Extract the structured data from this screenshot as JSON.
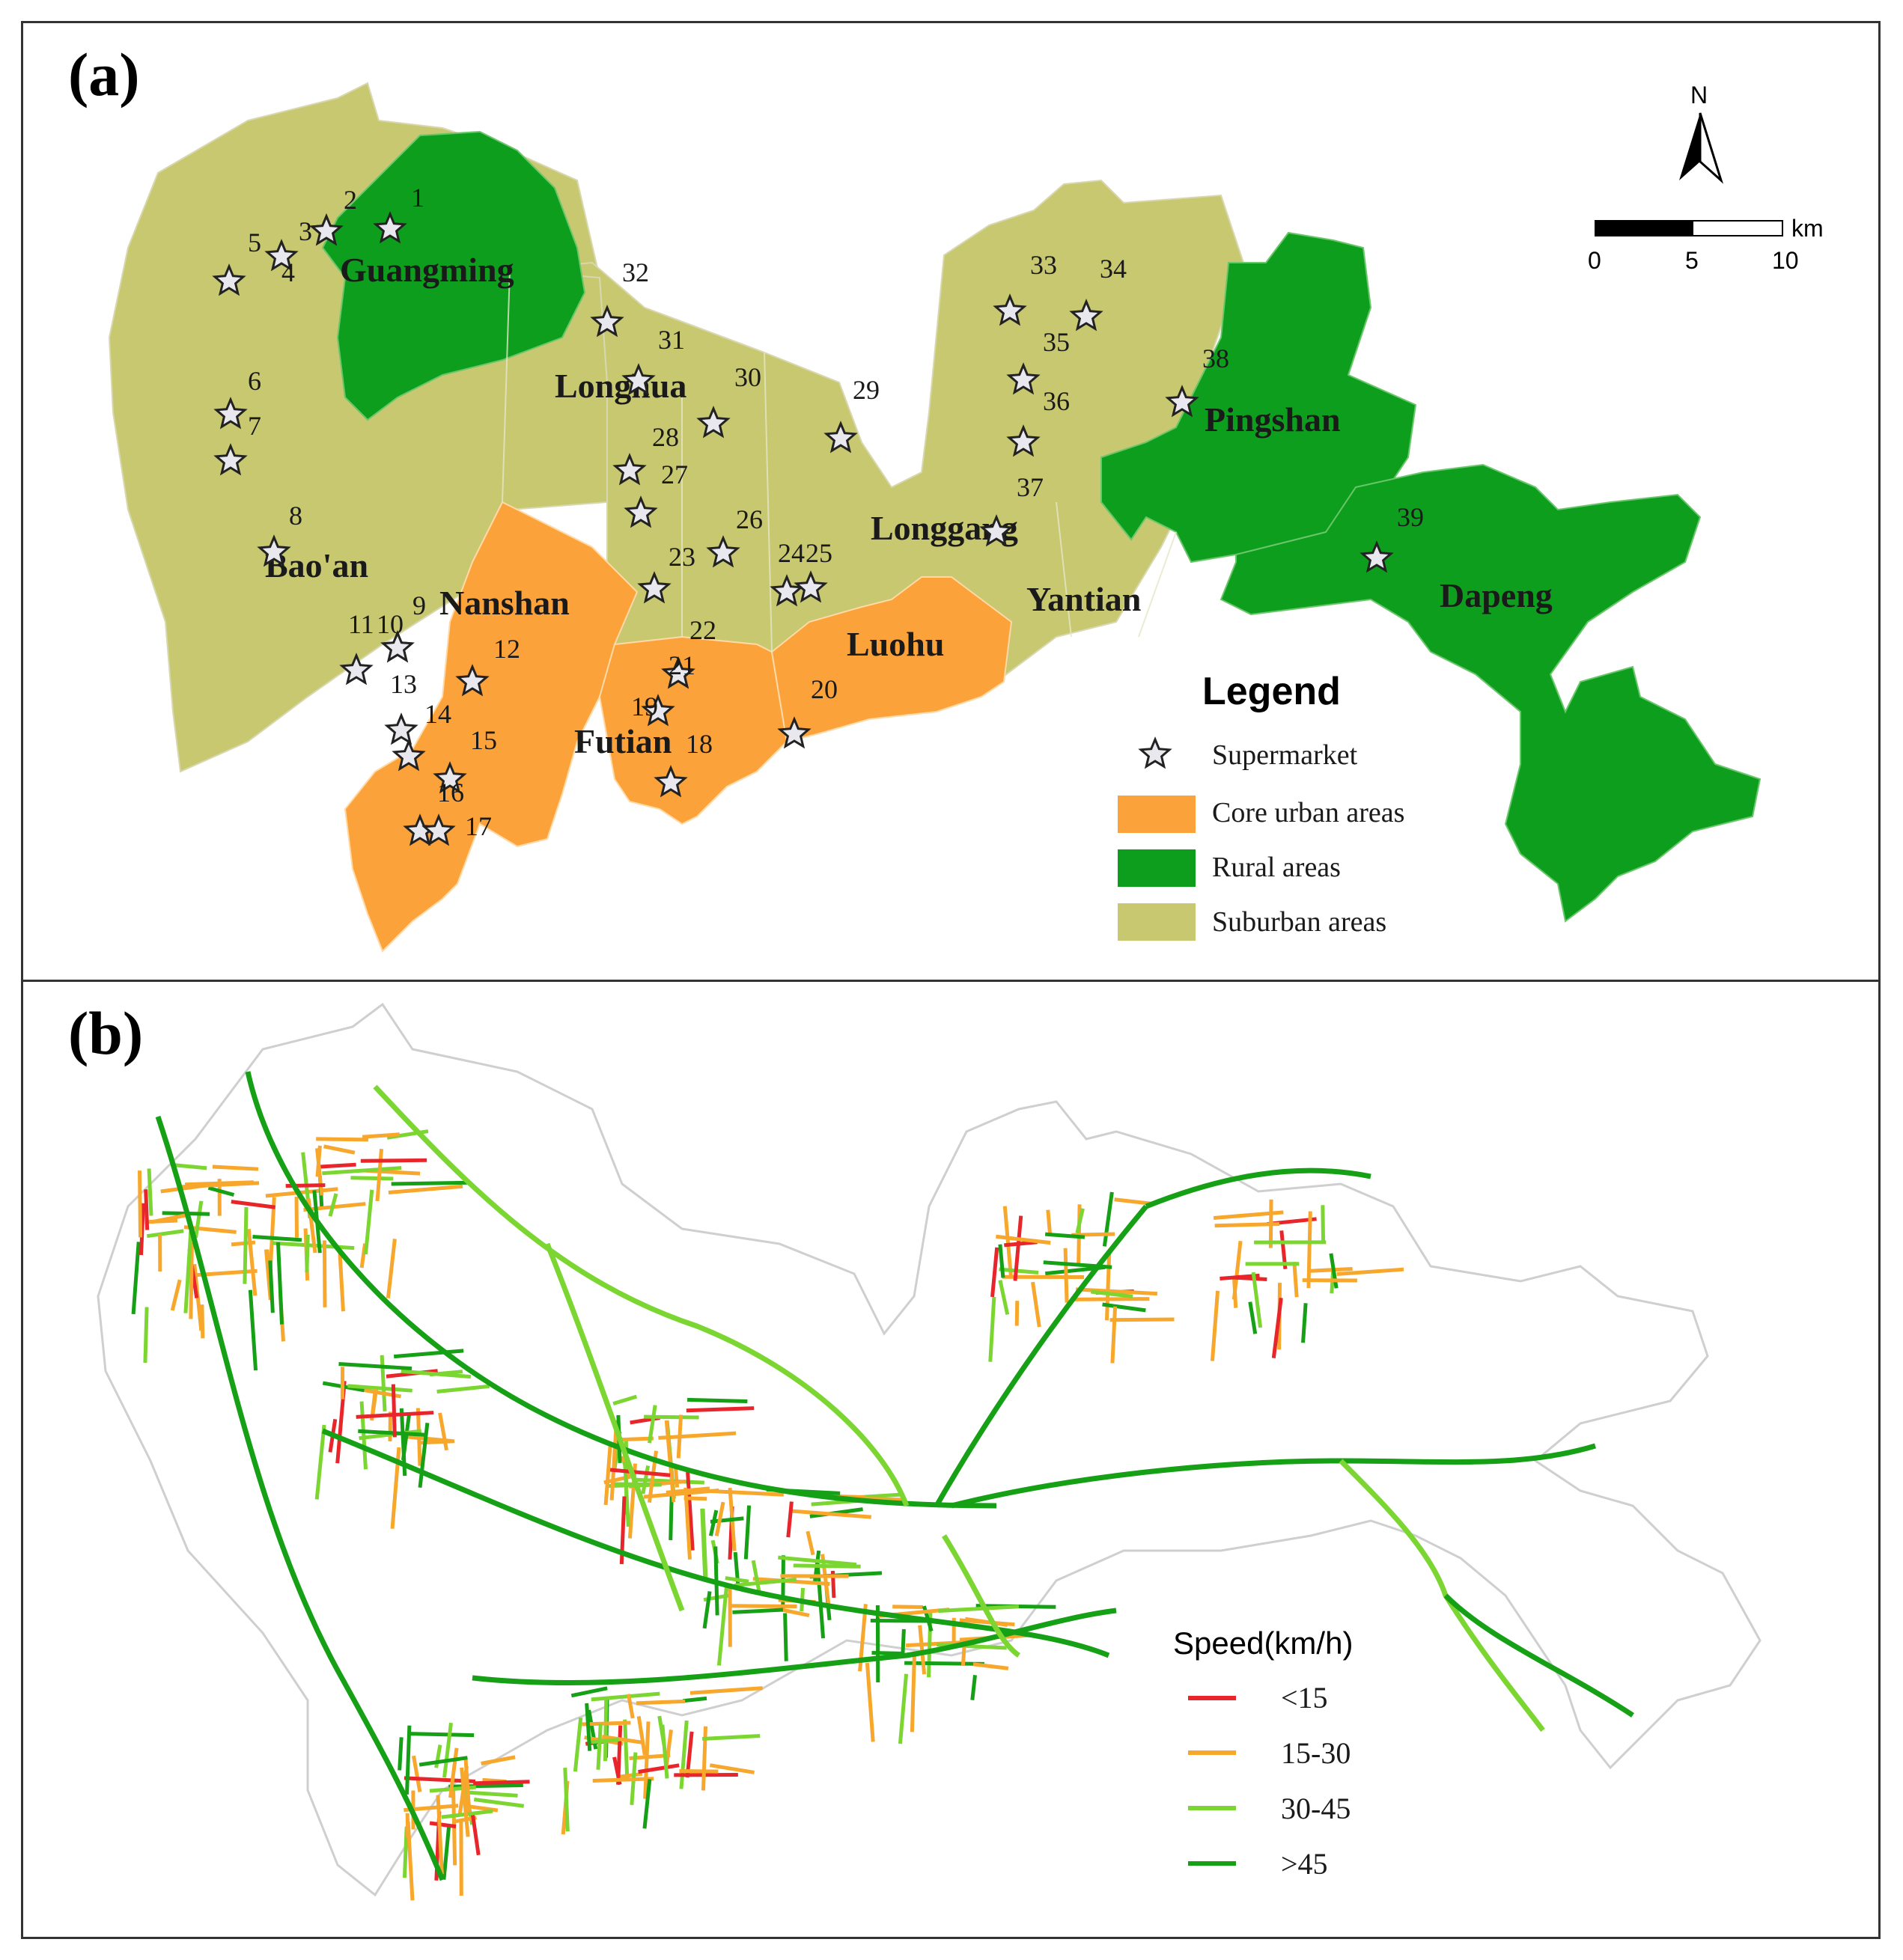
{
  "panel_a": {
    "label": "(a)",
    "north": "N",
    "scale": {
      "ticks": [
        "0",
        "5",
        "10"
      ],
      "unit": "km"
    },
    "districts": [
      "Guangming",
      "Bao'an",
      "Longhua",
      "Nanshan",
      "Futian",
      "Luohu",
      "Longgang",
      "Yantian",
      "Pingshan",
      "Dapeng"
    ],
    "supermarket_numbers": [
      "1",
      "2",
      "3",
      "4",
      "5",
      "6",
      "7",
      "8",
      "9",
      "10",
      "11",
      "12",
      "13",
      "14",
      "15",
      "16",
      "17",
      "18",
      "19",
      "20",
      "21",
      "22",
      "23",
      "24",
      "25",
      "26",
      "27",
      "28",
      "29",
      "30",
      "31",
      "32",
      "33",
      "34",
      "35",
      "36",
      "37",
      "38",
      "39"
    ],
    "legend": {
      "title": "Legend",
      "items": [
        {
          "label": "Supermarket",
          "symbol": "star-icon"
        },
        {
          "label": "Core urban areas",
          "color": "#FBA33A"
        },
        {
          "label": "Rural areas",
          "color": "#0E9E1E"
        },
        {
          "label": "Suburban areas",
          "color": "#C8C870"
        }
      ]
    }
  },
  "panel_b": {
    "label": "(b)",
    "legend": {
      "title": "Speed(km/h)",
      "items": [
        {
          "label": "<15",
          "color": "#E8252A"
        },
        {
          "label": "15-30",
          "color": "#F7A72C"
        },
        {
          "label": "30-45",
          "color": "#7CD632"
        },
        {
          "label": ">45",
          "color": "#16A016"
        }
      ]
    }
  }
}
